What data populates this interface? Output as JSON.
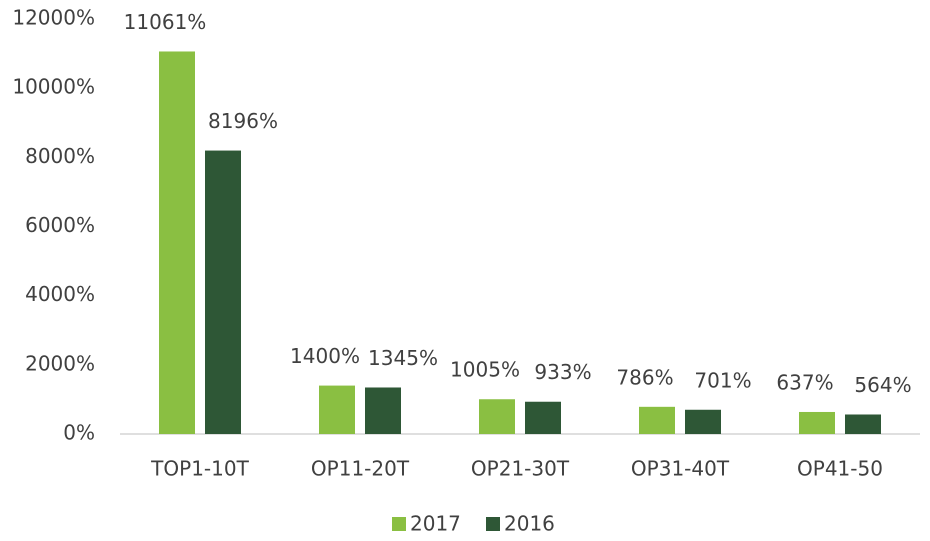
{
  "chart_data": {
    "type": "bar",
    "categories": [
      "TOP1-10T",
      "OP11-20T",
      "OP21-30T",
      "OP31-40T",
      "OP41-50"
    ],
    "series": [
      {
        "name": "2017",
        "color": "#8abf42",
        "values": [
          11061,
          1400,
          1005,
          786,
          637
        ],
        "value_labels": [
          "11061%",
          "1400%",
          "1005%",
          "786%",
          "637%"
        ]
      },
      {
        "name": "2016",
        "color": "#2e5736",
        "values": [
          8196,
          1345,
          933,
          701,
          564
        ],
        "value_labels": [
          "8196%",
          "1345%",
          "933%",
          "701%",
          "564%"
        ]
      }
    ],
    "ylim": [
      0,
      12000
    ],
    "yticks": [
      {
        "value": 0,
        "label": "0%"
      },
      {
        "value": 2000,
        "label": "2000%"
      },
      {
        "value": 4000,
        "label": "4000%"
      },
      {
        "value": 6000,
        "label": "6000%"
      },
      {
        "value": 8000,
        "label": "8000%"
      },
      {
        "value": 10000,
        "label": "10000%"
      },
      {
        "value": 12000,
        "label": "12000%"
      }
    ],
    "grid": false,
    "legend": "bottom"
  }
}
